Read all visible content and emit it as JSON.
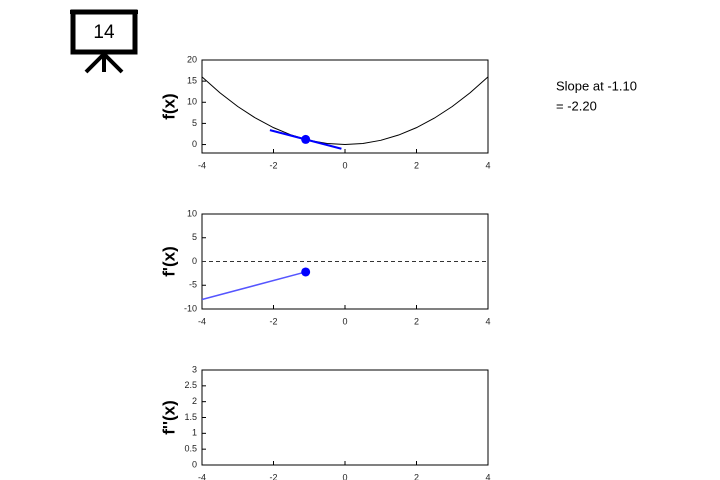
{
  "slide_number": "14",
  "annotation": [
    "Slope at -1.10",
    "= -2.20"
  ],
  "chart_data": [
    {
      "type": "line",
      "ylabel": "f(x)",
      "xlim": [
        -4,
        4
      ],
      "ylim": [
        -2,
        20
      ],
      "xticks": [
        -4,
        -2,
        0,
        2,
        4
      ],
      "yticks": [
        0,
        5,
        10,
        15,
        20
      ],
      "series": [
        {
          "color": "#000000",
          "width": 1,
          "x": [
            -4,
            -3.5,
            -3,
            -2.5,
            -2,
            -1.5,
            -1,
            -0.5,
            0,
            0.5,
            1,
            1.5,
            2,
            2.5,
            3,
            3.5,
            4
          ],
          "values": [
            16,
            12.25,
            9,
            6.25,
            4,
            2.25,
            1,
            0.25,
            0,
            0.25,
            1,
            2.25,
            4,
            6.25,
            9,
            12.25,
            16
          ]
        },
        {
          "color": "#0000ff",
          "width": 2,
          "x": [
            -2.1,
            -0.1
          ],
          "values": [
            3.41,
            -0.99
          ]
        }
      ],
      "points": [
        {
          "x": -1.1,
          "y": 1.21,
          "color": "#0000ff"
        }
      ]
    },
    {
      "type": "line",
      "ylabel": "f'(x)",
      "xlim": [
        -4,
        4
      ],
      "ylim": [
        -10,
        10
      ],
      "xticks": [
        -4,
        -2,
        0,
        2,
        4
      ],
      "yticks": [
        -10,
        -5,
        0,
        5,
        10
      ],
      "series": [
        {
          "color": "#5555ff",
          "width": 1.5,
          "x": [
            -4,
            -1.1
          ],
          "values": [
            -8,
            -2.2
          ]
        }
      ],
      "hlines": [
        {
          "y": 0,
          "style": "dashed",
          "color": "#333333"
        }
      ],
      "points": [
        {
          "x": -1.1,
          "y": -2.2,
          "color": "#0000ff"
        }
      ]
    },
    {
      "type": "line",
      "ylabel": "f''(x)",
      "xlim": [
        -4,
        4
      ],
      "ylim": [
        0,
        3
      ],
      "xticks": [
        -4,
        -2,
        0,
        2,
        4
      ],
      "yticks": [
        0,
        0.5,
        1,
        1.5,
        2,
        2.5,
        3
      ],
      "series": []
    }
  ]
}
